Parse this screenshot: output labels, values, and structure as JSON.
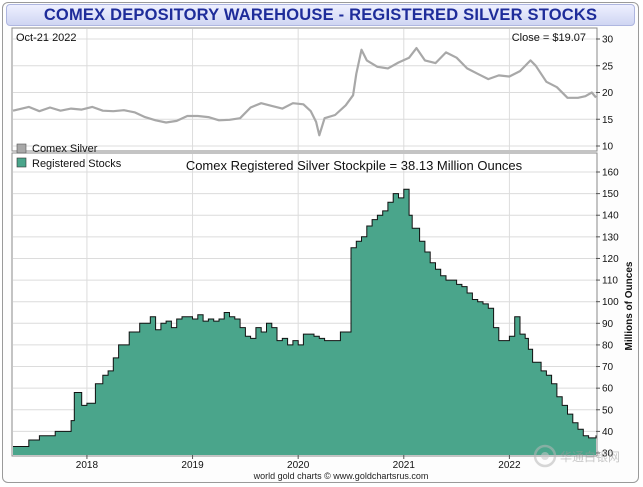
{
  "title": "COMEX DEPOSITORY WAREHOUSE - REGISTERED SILVER STOCKS",
  "date_label": "Oct-21  2022",
  "close_label": "Close = $19.07",
  "chart_title": "Comex Registered Silver Stockpile = 38.13 Million Ounces",
  "footer": "world gold charts © www.goldchartsrus.com",
  "watermark": "华通白银网",
  "colors": {
    "title_text": "#1e2c9a",
    "silver_line": "#a8a8a8",
    "stocks_fill": "#4aa58b",
    "stocks_line": "#111111",
    "grid": "#dcdcdc"
  },
  "chart_data": [
    {
      "type": "line",
      "legend": "Comex Silver",
      "ylim": [
        10,
        30
      ],
      "yticks": [
        10,
        15,
        20,
        25,
        30
      ],
      "xlim": [
        2017.3,
        2022.82
      ],
      "series": [
        {
          "name": "Comex Silver",
          "x": [
            2017.3,
            2017.45,
            2017.55,
            2017.65,
            2017.75,
            2017.85,
            2017.95,
            2018.05,
            2018.15,
            2018.25,
            2018.35,
            2018.45,
            2018.55,
            2018.65,
            2018.75,
            2018.85,
            2018.95,
            2019.05,
            2019.15,
            2019.25,
            2019.35,
            2019.45,
            2019.55,
            2019.65,
            2019.75,
            2019.85,
            2019.95,
            2020.05,
            2020.12,
            2020.17,
            2020.2,
            2020.25,
            2020.35,
            2020.45,
            2020.52,
            2020.55,
            2020.6,
            2020.65,
            2020.75,
            2020.85,
            2020.95,
            2021.05,
            2021.12,
            2021.2,
            2021.3,
            2021.4,
            2021.5,
            2021.6,
            2021.7,
            2021.8,
            2021.9,
            2022.0,
            2022.1,
            2022.2,
            2022.25,
            2022.35,
            2022.45,
            2022.55,
            2022.65,
            2022.72,
            2022.78,
            2022.82
          ],
          "y": [
            16.6,
            17.3,
            16.5,
            17.2,
            16.6,
            17.0,
            16.8,
            17.3,
            16.6,
            16.5,
            16.7,
            16.3,
            15.4,
            14.8,
            14.4,
            14.7,
            15.6,
            15.6,
            15.4,
            14.8,
            14.9,
            15.2,
            17.2,
            18.0,
            17.5,
            17.0,
            18.0,
            17.8,
            16.5,
            14.5,
            12.0,
            15.2,
            15.8,
            17.6,
            19.5,
            23.5,
            28.0,
            26.0,
            24.8,
            24.5,
            25.6,
            26.5,
            28.3,
            26.0,
            25.5,
            27.5,
            26.5,
            24.5,
            23.5,
            22.5,
            23.2,
            23.0,
            24.0,
            26.0,
            25.0,
            22.0,
            21.0,
            19.0,
            19.0,
            19.3,
            20.0,
            19.07
          ]
        }
      ]
    },
    {
      "type": "area",
      "legend": "Registered Stocks",
      "ylabel": "Millions of Ounces",
      "ylim": [
        30,
        160
      ],
      "yticks": [
        30,
        40,
        50,
        60,
        70,
        80,
        90,
        100,
        110,
        120,
        130,
        140,
        150,
        160
      ],
      "xlim": [
        2017.3,
        2022.82
      ],
      "xtick_values": [
        2018,
        2019,
        2020,
        2021,
        2022
      ],
      "xtick_labels": [
        "2018",
        "2019",
        "2020",
        "2021",
        "2022"
      ],
      "series": [
        {
          "name": "Registered Stocks",
          "x": [
            2017.3,
            2017.45,
            2017.55,
            2017.7,
            2017.85,
            2017.88,
            2017.95,
            2018.0,
            2018.08,
            2018.15,
            2018.2,
            2018.25,
            2018.3,
            2018.4,
            2018.5,
            2018.6,
            2018.65,
            2018.7,
            2018.75,
            2018.8,
            2018.85,
            2018.9,
            2019.0,
            2019.05,
            2019.1,
            2019.15,
            2019.2,
            2019.25,
            2019.3,
            2019.35,
            2019.4,
            2019.45,
            2019.5,
            2019.55,
            2019.6,
            2019.65,
            2019.7,
            2019.75,
            2019.8,
            2019.85,
            2019.9,
            2019.95,
            2020.0,
            2020.05,
            2020.1,
            2020.15,
            2020.2,
            2020.25,
            2020.3,
            2020.35,
            2020.4,
            2020.45,
            2020.5,
            2020.55,
            2020.6,
            2020.65,
            2020.7,
            2020.75,
            2020.8,
            2020.85,
            2020.9,
            2020.95,
            2021.0,
            2021.05,
            2021.08,
            2021.15,
            2021.2,
            2021.25,
            2021.3,
            2021.35,
            2021.4,
            2021.45,
            2021.5,
            2021.55,
            2021.6,
            2021.65,
            2021.7,
            2021.75,
            2021.8,
            2021.85,
            2021.9,
            2021.95,
            2022.0,
            2022.05,
            2022.1,
            2022.15,
            2022.18,
            2022.22,
            2022.3,
            2022.35,
            2022.4,
            2022.45,
            2022.5,
            2022.55,
            2022.6,
            2022.65,
            2022.7,
            2022.75,
            2022.82
          ],
          "y": [
            33,
            36,
            38,
            40,
            45,
            58,
            52,
            53,
            62,
            66,
            68,
            74,
            80,
            86,
            90,
            93,
            87,
            90,
            91,
            88,
            92,
            93,
            92,
            94,
            91,
            92,
            91,
            92,
            95,
            93,
            92,
            88,
            84,
            83,
            88,
            86,
            90,
            88,
            82,
            83,
            80,
            82,
            80,
            85,
            85,
            84,
            83,
            82,
            82,
            82,
            86,
            86,
            125,
            128,
            130,
            135,
            138,
            140,
            142,
            146,
            150,
            148,
            152,
            140,
            134,
            128,
            123,
            118,
            115,
            112,
            110,
            110,
            108,
            107,
            104,
            101,
            100,
            99,
            97,
            88,
            82,
            82,
            84,
            93,
            85,
            83,
            78,
            72,
            68,
            66,
            62,
            56,
            52,
            48,
            44,
            41,
            38,
            37,
            38.13
          ]
        }
      ]
    }
  ]
}
